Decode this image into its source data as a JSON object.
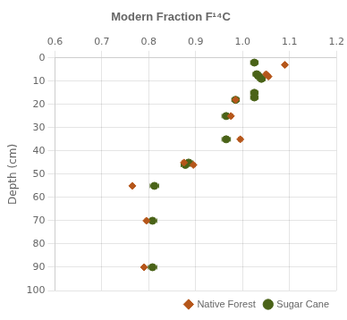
{
  "chart_data": {
    "type": "scatter",
    "title": "Modern Fraction F¹⁴C",
    "ylabel": "Depth (cm)",
    "xlim": [
      0.6,
      1.2
    ],
    "ylim": [
      100,
      0
    ],
    "xticks": [
      0.6,
      0.7,
      0.8,
      0.9,
      {
        "value": 1.0,
        "label": "1.0"
      },
      1.1,
      1.2
    ],
    "yticks": [
      0,
      10,
      20,
      30,
      40,
      50,
      60,
      70,
      80,
      90,
      100
    ],
    "grid": true,
    "legend": "lower right",
    "series": [
      {
        "name": "Native Forest",
        "color": "#b5561a",
        "marker": "diamond",
        "x": [
          1.09,
          1.05,
          1.055,
          0.985,
          0.975,
          0.995,
          0.875,
          0.895,
          0.765,
          0.795,
          0.79
        ],
        "values": [
          3,
          7,
          8,
          18,
          25,
          35,
          45,
          46,
          55,
          70,
          90
        ],
        "xerr": [
          0.004,
          0.004,
          0.004,
          0.004,
          0.004,
          0.004,
          0.004,
          0.004,
          0.003,
          0.003,
          0.003
        ]
      },
      {
        "name": "Sugar Cane",
        "color": "#4a6318",
        "marker": "circle",
        "x": [
          1.025,
          1.03,
          1.035,
          1.04,
          1.025,
          1.025,
          0.985,
          0.965,
          0.965,
          0.885,
          0.878,
          0.812,
          0.808,
          0.808
        ],
        "values": [
          2,
          7,
          8,
          9,
          15,
          17,
          18,
          25,
          35,
          45,
          46,
          55,
          70,
          90
        ],
        "xerr": [
          0.008,
          0.008,
          0.008,
          0.008,
          0.008,
          0.008,
          0.008,
          0.009,
          0.009,
          0.009,
          0.009,
          0.009,
          0.009,
          0.009
        ]
      }
    ]
  }
}
